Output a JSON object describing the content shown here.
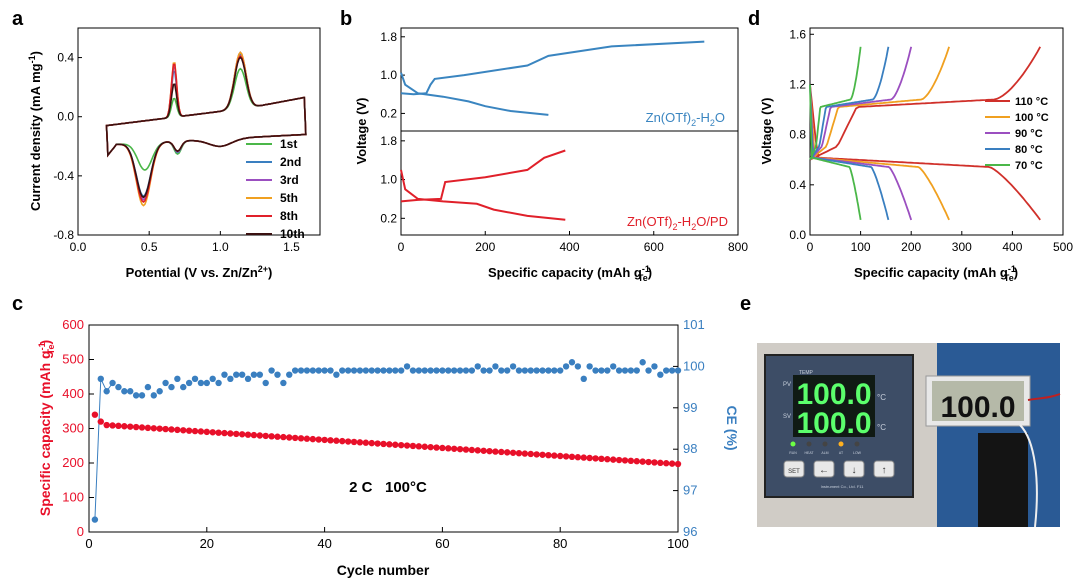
{
  "panel_labels": {
    "a": "a",
    "b": "b",
    "c": "c",
    "d": "d",
    "e": "e"
  },
  "colors": {
    "red": "#e0202a",
    "blue": "#3a85c0",
    "green": "#4bb749",
    "purple": "#9b4fc0",
    "orange": "#f0a020",
    "darkred": "#d0302a",
    "black": "#3a1010",
    "c_red": "#e8102a",
    "c_blue": "#3a7fc0"
  },
  "chart_data": [
    {
      "id": "a",
      "type": "line",
      "title": "",
      "xlabel": "Potential (V vs. Zn/Zn",
      "xlabel_sup": "2+",
      "xlabel_end": ")",
      "ylabel": "Current density (mA mg",
      "ylabel_sup": "-1",
      "ylabel_end": ")",
      "xlim": [
        0,
        1.7
      ],
      "ylim": [
        -0.8,
        0.6
      ],
      "xticks": [
        "0.0",
        "0.5",
        "1.0",
        "1.5"
      ],
      "xtick_values": [
        0,
        0.5,
        1.0,
        1.5
      ],
      "yticks": [
        "-0.8",
        "-0.4",
        "0.0",
        "0.4"
      ],
      "ytick_values": [
        -0.8,
        -0.4,
        0,
        0.4
      ],
      "legend": [
        "1st",
        "2nd",
        "3rd",
        "5th",
        "8th",
        "10th"
      ],
      "series": [
        {
          "name": "1st",
          "color": "#4bb749",
          "ox": 0.675,
          "oy": 0.13,
          "oh": 0.15,
          "rx": 0.47,
          "ry": -0.23,
          "rh": 0.18,
          "rx2": 0.7,
          "ry2": -0.22,
          "ry2h": 0.1
        },
        {
          "name": "2nd",
          "color": "#3a7fc0",
          "ox": 0.675,
          "oy": 0.32,
          "oh": 0.12,
          "rx": 0.46,
          "ry": -0.45,
          "rh": 0.1,
          "rx2": 0.7,
          "ry2": -0.19,
          "ry2h": 0.05
        },
        {
          "name": "3rd",
          "color": "#9b4fc0",
          "ox": 0.675,
          "oy": 0.35,
          "oh": 0.12,
          "rx": 0.46,
          "ry": -0.48,
          "rh": 0.1,
          "rx2": 0.7,
          "ry2": -0.18,
          "ry2h": 0.05
        },
        {
          "name": "5th",
          "color": "#f0a020",
          "ox": 0.675,
          "oy": 0.38,
          "oh": 0.12,
          "rx": 0.46,
          "ry": -0.53,
          "rh": 0.1,
          "rx2": 0.7,
          "ry2": -0.17,
          "ry2h": 0.05
        },
        {
          "name": "8th",
          "color": "#e0202a",
          "ox": 0.675,
          "oy": 0.37,
          "oh": 0.12,
          "rx": 0.46,
          "ry": -0.5,
          "rh": 0.1,
          "rx2": 0.7,
          "ry2": -0.17,
          "ry2h": 0.05
        },
        {
          "name": "10th",
          "color": "#3a1010",
          "ox": 0.675,
          "oy": 0.23,
          "oh": 0.12,
          "rx": 0.46,
          "ry": -0.46,
          "rh": 0.1,
          "rx2": 0.7,
          "ry2": -0.17,
          "ry2h": 0.05
        }
      ],
      "ox2_peaks": [
        0.32,
        0.44,
        0.45,
        0.45,
        0.42,
        0.41
      ]
    },
    {
      "id": "b",
      "type": "line",
      "xlabel": "Specific capacity (mAh g",
      "xlabel_sup": "-1",
      "xlabel_sub": "Te",
      "xlabel_end": ")",
      "ylabel": "Voltage (V)",
      "xlim": [
        0,
        800
      ],
      "ylim": [
        0,
        1.9
      ],
      "xticks": [
        "0",
        "200",
        "400",
        "600",
        "800"
      ],
      "xtick_values": [
        0,
        200,
        400,
        600,
        800
      ],
      "yticks": [
        "0.2",
        "1.0",
        "1.8"
      ],
      "ytick_values": [
        0.2,
        1.0,
        1.8
      ],
      "top": {
        "label": "Zn(OTf)",
        "label_sub": "2",
        "label_end": "-H",
        "label_sub2": "2",
        "label_end2": "O",
        "color": "#3a85c0",
        "charge": [
          [
            0,
            0.62
          ],
          [
            30,
            0.6
          ],
          [
            60,
            0.62
          ],
          [
            70,
            0.8
          ],
          [
            80,
            0.92
          ],
          [
            150,
            1.0
          ],
          [
            300,
            1.2
          ],
          [
            350,
            1.4
          ],
          [
            500,
            1.6
          ],
          [
            720,
            1.7
          ]
        ],
        "discharge": [
          [
            0,
            1.05
          ],
          [
            10,
            0.8
          ],
          [
            40,
            0.62
          ],
          [
            100,
            0.55
          ],
          [
            160,
            0.45
          ],
          [
            200,
            0.35
          ],
          [
            260,
            0.25
          ],
          [
            350,
            0.17
          ]
        ]
      },
      "bottom": {
        "label": "Zn(OTf)",
        "label_sub": "2",
        "label_end": "-H",
        "label_sub2": "2",
        "label_end2": "O/PD",
        "color": "#e0202a",
        "charge": [
          [
            0,
            0.55
          ],
          [
            40,
            0.58
          ],
          [
            95,
            0.6
          ],
          [
            105,
            0.95
          ],
          [
            200,
            1.05
          ],
          [
            300,
            1.2
          ],
          [
            340,
            1.45
          ],
          [
            390,
            1.6
          ]
        ],
        "discharge": [
          [
            0,
            1.2
          ],
          [
            10,
            0.8
          ],
          [
            40,
            0.6
          ],
          [
            100,
            0.55
          ],
          [
            180,
            0.5
          ],
          [
            220,
            0.38
          ],
          [
            300,
            0.25
          ],
          [
            390,
            0.17
          ]
        ]
      }
    },
    {
      "id": "c",
      "type": "scatter",
      "xlabel": "Cycle number",
      "ylabel": "Specific capacity (mAh g",
      "ylabel_sup": "-1",
      "ylabel_sub": "Te",
      "ylabel_end": ")",
      "y2label": "CE (%)",
      "xlim": [
        0,
        100
      ],
      "ylim": [
        0,
        600
      ],
      "y2lim": [
        96,
        101
      ],
      "xticks": [
        "0",
        "20",
        "40",
        "60",
        "80",
        "100"
      ],
      "xtick_values": [
        0,
        20,
        40,
        60,
        80,
        100
      ],
      "yticks": [
        "0",
        "100",
        "200",
        "300",
        "400",
        "500",
        "600"
      ],
      "ytick_values": [
        0,
        100,
        200,
        300,
        400,
        500,
        600
      ],
      "y2ticks": [
        "96",
        "97",
        "98",
        "99",
        "100",
        "101"
      ],
      "y2tick_values": [
        96,
        97,
        98,
        99,
        100,
        101
      ],
      "annotation": "2 C   100°C",
      "capacity": {
        "start": 340,
        "second": 320,
        "third": 310,
        "end": 197,
        "color": "#e8102a"
      },
      "ce": {
        "color": "#3a7fc0",
        "values": [
          96.3,
          99.7,
          99.4,
          99.6,
          99.5,
          99.4,
          99.4,
          99.3,
          99.3,
          99.5,
          99.3,
          99.4,
          99.6,
          99.5,
          99.7,
          99.5,
          99.6,
          99.7,
          99.6,
          99.6,
          99.7,
          99.6,
          99.8,
          99.7,
          99.8,
          99.8,
          99.7,
          99.8,
          99.8,
          99.6,
          99.9,
          99.8,
          99.6,
          99.8,
          99.9,
          99.9,
          99.9,
          99.9,
          99.9,
          99.9,
          99.9,
          99.8,
          99.9,
          99.9,
          99.9,
          99.9,
          99.9,
          99.9,
          99.9,
          99.9,
          99.9,
          99.9,
          99.9,
          100.0,
          99.9,
          99.9,
          99.9,
          99.9,
          99.9,
          99.9,
          99.9,
          99.9,
          99.9,
          99.9,
          99.9,
          100.0,
          99.9,
          99.9,
          100.0,
          99.9,
          99.9,
          100.0,
          99.9,
          99.9,
          99.9,
          99.9,
          99.9,
          99.9,
          99.9,
          99.9,
          100.0,
          100.1,
          100.0,
          99.7,
          100.0,
          99.9,
          99.9,
          99.9,
          100.0,
          99.9,
          99.9,
          99.9,
          99.9,
          100.1,
          99.9,
          100.0,
          99.8,
          99.9,
          99.9,
          99.9
        ]
      }
    },
    {
      "id": "d",
      "type": "line",
      "xlabel": "Specific capacity (mAh g",
      "xlabel_sup": "-1",
      "xlabel_sub": "Te",
      "xlabel_end": ")",
      "ylabel": "Voltage (V)",
      "xlim": [
        0,
        500
      ],
      "ylim": [
        0,
        1.65
      ],
      "xticks": [
        "0",
        "100",
        "200",
        "300",
        "400",
        "500"
      ],
      "xtick_values": [
        0,
        100,
        200,
        300,
        400,
        500
      ],
      "yticks": [
        "0.0",
        "0.4",
        "0.8",
        "1.2",
        "1.6"
      ],
      "ytick_values": [
        0,
        0.4,
        0.8,
        1.2,
        1.6
      ],
      "legend": [
        "110 °C",
        "100 °C",
        "90 °C",
        "80 °C",
        "70 °C"
      ],
      "series": [
        {
          "name": "110 °C",
          "color": "#d0302a",
          "cap": 455
        },
        {
          "name": "100 °C",
          "color": "#f0a020",
          "cap": 275
        },
        {
          "name": "90 °C",
          "color": "#9b4fc0",
          "cap": 200
        },
        {
          "name": "80 °C",
          "color": "#3a7fc0",
          "cap": 155
        },
        {
          "name": "70 °C",
          "color": "#4bb749",
          "cap": 100
        }
      ]
    }
  ],
  "photo": {
    "temp_label": "TEMP",
    "pv": "PV",
    "sv": "SV",
    "pv_value": "100.0",
    "sv_value": "100.0",
    "unit": "°C",
    "small_display": "100.0",
    "brand": "Instrument Co., Ltd. F11",
    "leds": [
      "RUN",
      "HEAT",
      "ALM",
      "AT",
      "LOW"
    ],
    "keys": [
      "SET",
      "←",
      "↓",
      "↑"
    ]
  }
}
